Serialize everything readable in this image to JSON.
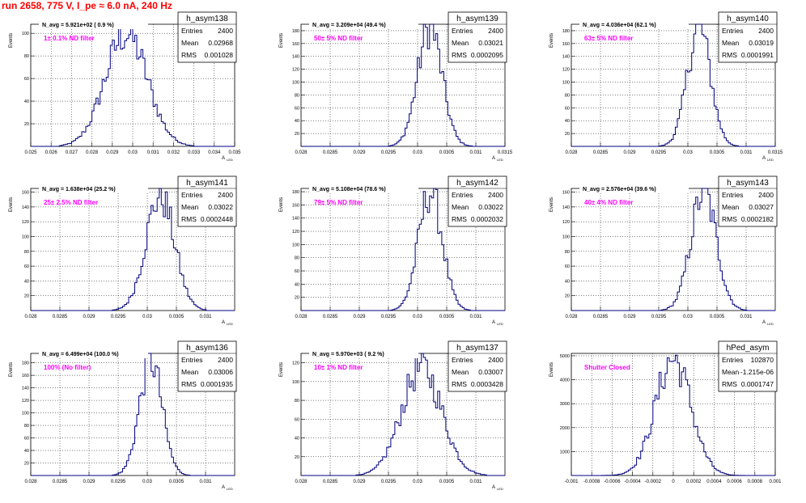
{
  "page": {
    "title": "run 2658,   775 V, I_pe ≈ 6.0 nA, 240 Hz"
  },
  "colors": {
    "title": "#ff0000",
    "filter_label": "#ff00ff",
    "histogram": "#000080",
    "grid": "#000000"
  },
  "chart_data": [
    {
      "type": "histogram",
      "name": "h_asym138",
      "title": "N_avg = 5.921e+02 ( 0.9 %)",
      "filter": "1± 0.1% ND filter",
      "stats": {
        "Entries": "2400",
        "Mean": "0.02968",
        "RMS": "0.001028"
      },
      "ylabel": "Events",
      "xlabel": "A_{LED}",
      "xlim": [
        0.025,
        0.035
      ],
      "ylim": [
        0,
        108
      ],
      "xticks": [
        0.025,
        0.026,
        0.027,
        0.028,
        0.029,
        0.03,
        0.031,
        0.032,
        0.033,
        0.034,
        0.035
      ],
      "xtick_labels": [
        "0.025",
        "0.026",
        "0.027",
        "0.028",
        "0.029",
        "0.03",
        "0.031",
        "0.032",
        "0.033",
        "0.034",
        "0.035"
      ],
      "yticks": [
        20,
        40,
        60,
        80,
        100
      ],
      "mean": 0.02968,
      "rms": 0.001028,
      "peak": 100,
      "bin": 0.0001
    },
    {
      "type": "histogram",
      "name": "h_asym139",
      "title": "N_avg = 3.209e+04 (49.4 %)",
      "filter": "50± 5% ND filter",
      "stats": {
        "Entries": "2400",
        "Mean": "0.03021",
        "RMS": "0.0002095"
      },
      "ylabel": "Events",
      "xlabel": "A_{LED}",
      "xlim": [
        0.028,
        0.0315
      ],
      "ylim": [
        0,
        190
      ],
      "xticks": [
        0.028,
        0.0285,
        0.029,
        0.0295,
        0.03,
        0.0305,
        0.031,
        0.0315
      ],
      "xtick_labels": [
        "0.028",
        "0.0285",
        "0.029",
        "0.0295",
        "0.03",
        "0.0305",
        "0.031",
        "0.0315"
      ],
      "yticks": [
        20,
        40,
        60,
        80,
        100,
        120,
        140,
        160,
        180
      ],
      "mean": 0.03021,
      "rms": 0.0002095,
      "peak": 185,
      "bin": 3.5e-05
    },
    {
      "type": "histogram",
      "name": "h_asym140",
      "title": "N_avg = 4.036e+04 (62.1 %)",
      "filter": "63± 5% ND filter",
      "stats": {
        "Entries": "2400",
        "Mean": "0.03019",
        "RMS": "0.0001991"
      },
      "ylabel": "Events",
      "xlabel": "A_{LED}",
      "xlim": [
        0.028,
        0.0315
      ],
      "ylim": [
        0,
        190
      ],
      "xticks": [
        0.028,
        0.0285,
        0.029,
        0.0295,
        0.03,
        0.0305,
        0.031,
        0.0315
      ],
      "xtick_labels": [
        "0.028",
        "0.0285",
        "0.029",
        "0.0295",
        "0.03",
        "0.0305",
        "0.031",
        "0.0315"
      ],
      "yticks": [
        20,
        40,
        60,
        80,
        100,
        120,
        140,
        160,
        180
      ],
      "mean": 0.03019,
      "rms": 0.0001991,
      "peak": 185,
      "bin": 3.5e-05
    },
    {
      "type": "histogram",
      "name": "h_asym141",
      "title": "N_avg = 1.638e+04 (25.2 %)",
      "filter": "25± 2.5% ND filter",
      "stats": {
        "Entries": "2400",
        "Mean": "0.03022",
        "RMS": "0.0002448"
      },
      "ylabel": "Events",
      "xlabel": "A_{LED}",
      "xlim": [
        0.028,
        0.0315
      ],
      "ylim": [
        0,
        165
      ],
      "xticks": [
        0.028,
        0.0285,
        0.029,
        0.0295,
        0.03,
        0.0305,
        0.031
      ],
      "xtick_labels": [
        "0.028",
        "0.0285",
        "0.029",
        "0.0295",
        "0.03",
        "0.0305",
        "0.031"
      ],
      "yticks": [
        20,
        40,
        60,
        80,
        100,
        120,
        140,
        160
      ],
      "mean": 0.03022,
      "rms": 0.0002448,
      "peak": 155,
      "bin": 3.5e-05
    },
    {
      "type": "histogram",
      "name": "h_asym142",
      "title": "N_avg = 5.108e+04 (78.6 %)",
      "filter": "79± 5% ND filter",
      "stats": {
        "Entries": "2400",
        "Mean": "0.03022",
        "RMS": "0.0002032"
      },
      "ylabel": "Events",
      "xlabel": "A_{LED}",
      "xlim": [
        0.028,
        0.0315
      ],
      "ylim": [
        0,
        185
      ],
      "xticks": [
        0.028,
        0.0285,
        0.029,
        0.0295,
        0.03,
        0.0305,
        0.031
      ],
      "xtick_labels": [
        "0.028",
        "0.0285",
        "0.029",
        "0.0295",
        "0.03",
        "0.0305",
        "0.031"
      ],
      "yticks": [
        20,
        40,
        60,
        80,
        100,
        120,
        140,
        160,
        180
      ],
      "mean": 0.03022,
      "rms": 0.0002032,
      "peak": 180,
      "bin": 3.5e-05
    },
    {
      "type": "histogram",
      "name": "h_asym143",
      "title": "N_avg = 2.576e+04 (39.6 %)",
      "filter": "40± 4% ND filter",
      "stats": {
        "Entries": "2400",
        "Mean": "0.03027",
        "RMS": "0.0002182"
      },
      "ylabel": "Events",
      "xlabel": "A_{LED}",
      "xlim": [
        0.028,
        0.0315
      ],
      "ylim": [
        0,
        165
      ],
      "xticks": [
        0.028,
        0.0285,
        0.029,
        0.0295,
        0.03,
        0.0305,
        0.031
      ],
      "xtick_labels": [
        "0.028",
        "0.0285",
        "0.029",
        "0.0295",
        "0.03",
        "0.0305",
        "0.031"
      ],
      "yticks": [
        20,
        40,
        60,
        80,
        100,
        120,
        140,
        160
      ],
      "mean": 0.03027,
      "rms": 0.0002182,
      "peak": 160,
      "bin": 3.5e-05
    },
    {
      "type": "histogram",
      "name": "h_asym136",
      "title": "N_avg = 6.499e+04 (100.0 %)",
      "filter": "100% (No filter)",
      "stats": {
        "Entries": "2400",
        "Mean": "0.03006",
        "RMS": "0.0001935"
      },
      "ylabel": "Events",
      "xlabel": "A_{LED}",
      "xlim": [
        0.028,
        0.0315
      ],
      "ylim": [
        0,
        195
      ],
      "xticks": [
        0.028,
        0.0285,
        0.029,
        0.0295,
        0.03,
        0.0305,
        0.031
      ],
      "xtick_labels": [
        "0.028",
        "0.0285",
        "0.029",
        "0.0295",
        "0.03",
        "0.0305",
        "0.031"
      ],
      "yticks": [
        20,
        40,
        60,
        80,
        100,
        120,
        140,
        160,
        180
      ],
      "mean": 0.03006,
      "rms": 0.0001935,
      "peak": 185,
      "bin": 3.5e-05
    },
    {
      "type": "histogram",
      "name": "h_asym137",
      "title": "N_avg = 5.970e+03 ( 9.2 %)",
      "filter": "10± 1% ND filter",
      "stats": {
        "Entries": "2400",
        "Mean": "0.03007",
        "RMS": "0.0003428"
      },
      "ylabel": "Events",
      "xlabel": "A_{LED}",
      "xlim": [
        0.028,
        0.0315
      ],
      "ylim": [
        0,
        130
      ],
      "xticks": [
        0.028,
        0.0285,
        0.029,
        0.0295,
        0.03,
        0.0305,
        0.031
      ],
      "xtick_labels": [
        "0.028",
        "0.0285",
        "0.029",
        "0.0295",
        "0.03",
        "0.0305",
        "0.031"
      ],
      "yticks": [
        20,
        40,
        60,
        80,
        100,
        120
      ],
      "mean": 0.03007,
      "rms": 0.0003428,
      "peak": 115,
      "bin": 3.5e-05
    },
    {
      "type": "histogram",
      "name": "hPed_asym",
      "title": "",
      "filter": "Shutter Closed",
      "stats": {
        "Entries": "102870",
        "Mean": "-1.215e-06",
        "RMS": "0.0001747"
      },
      "ylabel": "Events",
      "xlabel": "",
      "xlim": [
        -0.001,
        0.001
      ],
      "ylim": [
        0,
        5100
      ],
      "xticks": [
        -0.001,
        -0.0008,
        -0.0006,
        -0.0004,
        -0.0002,
        0,
        0.0002,
        0.0004,
        0.0006,
        0.0008,
        0.001
      ],
      "xtick_labels": [
        "-0.001",
        "-0.0008",
        "-0.0006",
        "-0.0004",
        "-0.0002",
        "0",
        "0.0002",
        "0.0004",
        "0.0006",
        "0.0008",
        "0.001"
      ],
      "yticks": [
        1000,
        2000,
        3000,
        4000,
        5000
      ],
      "mean": -1.215e-06,
      "rms": 0.0001747,
      "peak": 4850,
      "bin": 2e-05
    }
  ]
}
